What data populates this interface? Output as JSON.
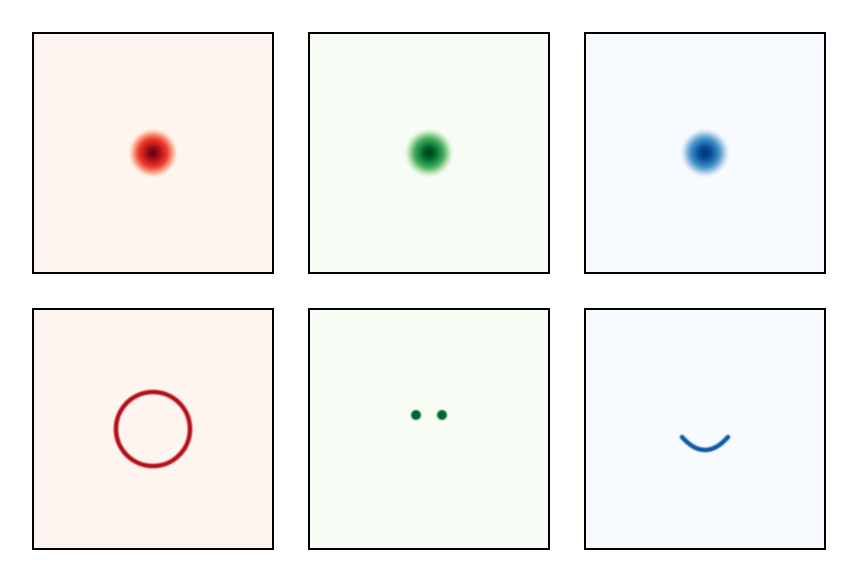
{
  "colors": {
    "red_bg": "#fff5f0",
    "red_dark": "#67000d",
    "red_mid": "#cb181d",
    "green_bg": "#f7fcf5",
    "green_dark": "#00441b",
    "green_mid": "#238b45",
    "blue_bg": "#f7fbff",
    "blue_dark": "#08306b",
    "blue_mid": "#2171b5",
    "ring": "#b30f12",
    "eyes": "#00662a",
    "smile": "#0d5aa6",
    "frame": "#000000"
  },
  "panels": [
    {
      "shape": "gaussian-blob",
      "channel": "red"
    },
    {
      "shape": "gaussian-blob",
      "channel": "green"
    },
    {
      "shape": "gaussian-blob",
      "channel": "blue"
    },
    {
      "shape": "ring",
      "channel": "red"
    },
    {
      "shape": "two-dots",
      "channel": "green"
    },
    {
      "shape": "arc",
      "channel": "blue"
    }
  ]
}
